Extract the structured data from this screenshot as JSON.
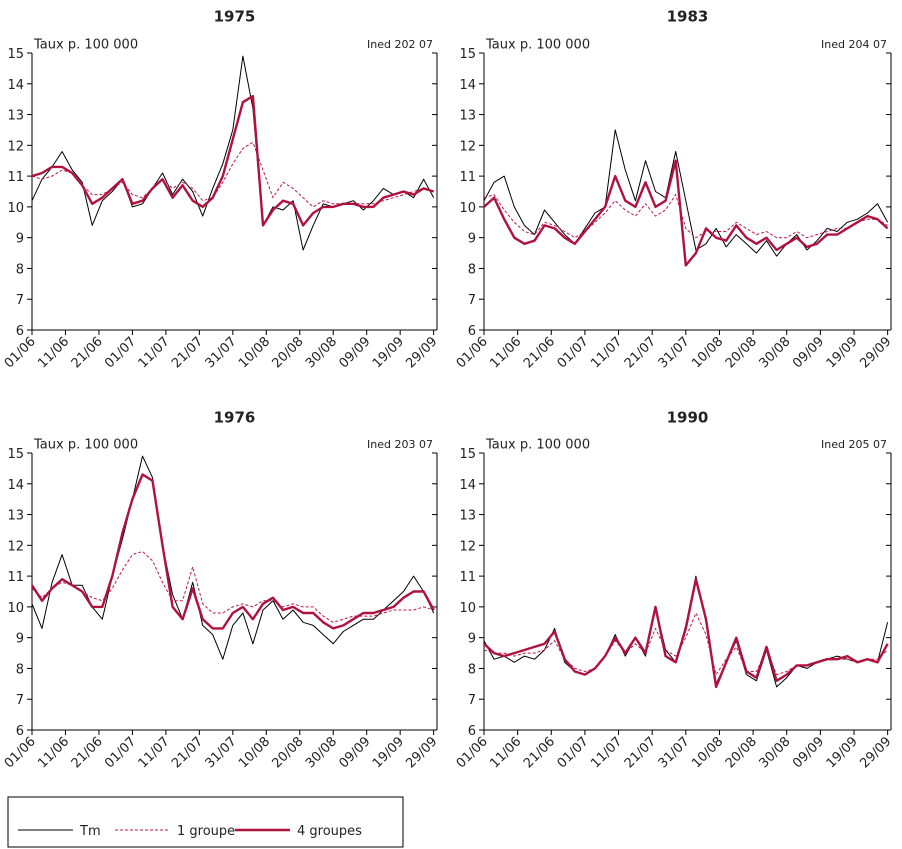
{
  "chart_data": [
    {
      "type": "line",
      "title": "1975",
      "y_label": "Taux p. 100 000",
      "annotation": "Ined 202 07",
      "x": [
        0,
        3,
        6,
        9,
        12,
        15,
        18,
        21,
        24,
        27,
        30,
        33,
        36,
        39,
        42,
        45,
        48,
        51,
        54,
        57,
        60,
        63,
        66,
        69,
        72,
        75,
        78,
        81,
        84,
        87,
        90,
        93,
        96,
        99,
        102,
        105,
        108,
        111,
        114,
        117,
        120
      ],
      "xlim": [
        0,
        121
      ],
      "ylim": [
        6,
        15
      ],
      "yticks": [
        6,
        7,
        8,
        9,
        10,
        11,
        12,
        13,
        14,
        15
      ],
      "xticks": [
        {
          "value": 0,
          "label": "01/06"
        },
        {
          "value": 10,
          "label": "11/06"
        },
        {
          "value": 20,
          "label": "21/06"
        },
        {
          "value": 30,
          "label": "01/07"
        },
        {
          "value": 40,
          "label": "11/07"
        },
        {
          "value": 50,
          "label": "21/07"
        },
        {
          "value": 60,
          "label": "31/07"
        },
        {
          "value": 70,
          "label": "10/08"
        },
        {
          "value": 80,
          "label": "20/08"
        },
        {
          "value": 90,
          "label": "30/08"
        },
        {
          "value": 100,
          "label": "09/09"
        },
        {
          "value": 110,
          "label": "19/09"
        },
        {
          "value": 120,
          "label": "29/09"
        }
      ],
      "series": [
        {
          "name": "Tm",
          "color": "#000000",
          "style": "thin",
          "values": [
            10.2,
            10.9,
            11.3,
            11.8,
            11.2,
            10.8,
            9.4,
            10.2,
            10.5,
            10.9,
            10.0,
            10.1,
            10.6,
            11.1,
            10.4,
            10.9,
            10.5,
            9.7,
            10.6,
            11.4,
            12.5,
            14.9,
            13.2,
            9.4,
            10.0,
            9.9,
            10.2,
            8.6,
            9.4,
            10.1,
            10.0,
            10.1,
            10.2,
            9.9,
            10.2,
            10.6,
            10.4,
            10.5,
            10.3,
            10.9,
            10.3
          ]
        },
        {
          "name": "1 groupe",
          "color": "#c0174a",
          "style": "dashed",
          "values": [
            11.0,
            10.9,
            11.0,
            11.2,
            11.1,
            10.7,
            10.4,
            10.4,
            10.6,
            10.8,
            10.4,
            10.3,
            10.6,
            10.9,
            10.6,
            10.8,
            10.6,
            10.2,
            10.3,
            10.8,
            11.4,
            11.9,
            12.1,
            11.2,
            10.3,
            10.8,
            10.6,
            10.3,
            10.0,
            10.2,
            10.1,
            10.1,
            10.1,
            10.1,
            10.1,
            10.2,
            10.3,
            10.4,
            10.5,
            10.6,
            10.5
          ]
        },
        {
          "name": "4 groupes",
          "color": "#b0123f",
          "style": "thick",
          "values": [
            11.0,
            11.1,
            11.3,
            11.3,
            11.1,
            10.7,
            10.1,
            10.3,
            10.6,
            10.9,
            10.1,
            10.2,
            10.6,
            10.9,
            10.3,
            10.7,
            10.2,
            10.0,
            10.3,
            11.0,
            12.2,
            13.4,
            13.6,
            9.4,
            9.9,
            10.2,
            10.1,
            9.4,
            9.8,
            10.0,
            10.0,
            10.1,
            10.1,
            10.0,
            10.0,
            10.3,
            10.4,
            10.5,
            10.4,
            10.6,
            10.5
          ]
        }
      ]
    },
    {
      "type": "line",
      "title": "1983",
      "y_label": "Taux p. 100 000",
      "annotation": "Ined 204 07",
      "x": [
        0,
        3,
        6,
        9,
        12,
        15,
        18,
        21,
        24,
        27,
        30,
        33,
        36,
        39,
        42,
        45,
        48,
        51,
        54,
        57,
        60,
        63,
        66,
        69,
        72,
        75,
        78,
        81,
        84,
        87,
        90,
        93,
        96,
        99,
        102,
        105,
        108,
        111,
        114,
        117,
        120
      ],
      "xlim": [
        0,
        121
      ],
      "ylim": [
        6,
        15
      ],
      "yticks": [
        6,
        7,
        8,
        9,
        10,
        11,
        12,
        13,
        14,
        15
      ],
      "xticks": [
        {
          "value": 0,
          "label": "01/06"
        },
        {
          "value": 10,
          "label": "11/06"
        },
        {
          "value": 20,
          "label": "21/06"
        },
        {
          "value": 30,
          "label": "01/07"
        },
        {
          "value": 40,
          "label": "11/07"
        },
        {
          "value": 50,
          "label": "21/07"
        },
        {
          "value": 60,
          "label": "31/07"
        },
        {
          "value": 70,
          "label": "10/08"
        },
        {
          "value": 80,
          "label": "20/08"
        },
        {
          "value": 90,
          "label": "30/08"
        },
        {
          "value": 100,
          "label": "09/09"
        },
        {
          "value": 110,
          "label": "19/09"
        },
        {
          "value": 120,
          "label": "29/09"
        }
      ],
      "series": [
        {
          "name": "Tm",
          "color": "#000000",
          "style": "thin",
          "values": [
            10.2,
            10.8,
            11.0,
            10.0,
            9.4,
            9.1,
            9.9,
            9.5,
            9.1,
            8.8,
            9.3,
            9.8,
            10.0,
            12.5,
            11.2,
            10.2,
            11.5,
            10.5,
            10.3,
            11.8,
            10.2,
            8.6,
            8.8,
            9.3,
            8.7,
            9.1,
            8.8,
            8.5,
            8.9,
            8.4,
            8.8,
            9.1,
            8.6,
            8.9,
            9.3,
            9.2,
            9.5,
            9.6,
            9.8,
            10.1,
            9.5
          ]
        },
        {
          "name": "1 groupe",
          "color": "#c0174a",
          "style": "dashed",
          "values": [
            10.3,
            10.4,
            9.9,
            9.5,
            9.2,
            9.1,
            9.5,
            9.4,
            9.2,
            9.0,
            9.2,
            9.5,
            9.8,
            10.2,
            9.9,
            9.7,
            10.1,
            9.7,
            9.9,
            10.4,
            9.3,
            9.0,
            9.2,
            9.2,
            9.2,
            9.5,
            9.3,
            9.1,
            9.2,
            9.0,
            9.0,
            9.2,
            9.0,
            9.1,
            9.2,
            9.3,
            9.3,
            9.5,
            9.6,
            9.6,
            9.4
          ]
        },
        {
          "name": "4 groupes",
          "color": "#b0123f",
          "style": "thick",
          "values": [
            10.0,
            10.3,
            9.6,
            9.0,
            8.8,
            8.9,
            9.4,
            9.3,
            9.0,
            8.8,
            9.2,
            9.6,
            10.0,
            11.0,
            10.2,
            10.0,
            10.8,
            10.0,
            10.2,
            11.5,
            8.1,
            8.5,
            9.3,
            9.0,
            8.9,
            9.4,
            9.0,
            8.8,
            9.0,
            8.6,
            8.8,
            9.0,
            8.7,
            8.8,
            9.1,
            9.1,
            9.3,
            9.5,
            9.7,
            9.6,
            9.3
          ]
        }
      ]
    },
    {
      "type": "line",
      "title": "1976",
      "y_label": "Taux p. 100 000",
      "annotation": "Ined 203 07",
      "x": [
        0,
        3,
        6,
        9,
        12,
        15,
        18,
        21,
        24,
        27,
        30,
        33,
        36,
        39,
        42,
        45,
        48,
        51,
        54,
        57,
        60,
        63,
        66,
        69,
        72,
        75,
        78,
        81,
        84,
        87,
        90,
        93,
        96,
        99,
        102,
        105,
        108,
        111,
        114,
        117,
        120
      ],
      "xlim": [
        0,
        121
      ],
      "ylim": [
        6,
        15
      ],
      "yticks": [
        6,
        7,
        8,
        9,
        10,
        11,
        12,
        13,
        14,
        15
      ],
      "xticks": [
        {
          "value": 0,
          "label": "01/06"
        },
        {
          "value": 10,
          "label": "11/06"
        },
        {
          "value": 20,
          "label": "21/06"
        },
        {
          "value": 30,
          "label": "01/07"
        },
        {
          "value": 40,
          "label": "11/07"
        },
        {
          "value": 50,
          "label": "21/07"
        },
        {
          "value": 60,
          "label": "31/07"
        },
        {
          "value": 70,
          "label": "10/08"
        },
        {
          "value": 80,
          "label": "20/08"
        },
        {
          "value": 90,
          "label": "30/08"
        },
        {
          "value": 100,
          "label": "09/09"
        },
        {
          "value": 110,
          "label": "19/09"
        },
        {
          "value": 120,
          "label": "29/09"
        }
      ],
      "series": [
        {
          "name": "Tm",
          "color": "#000000",
          "style": "thin",
          "values": [
            10.1,
            9.3,
            10.8,
            11.7,
            10.7,
            10.7,
            10.0,
            9.6,
            11.0,
            12.2,
            13.5,
            14.9,
            14.2,
            12.0,
            10.4,
            9.6,
            10.8,
            9.4,
            9.1,
            8.3,
            9.4,
            9.8,
            8.8,
            9.9,
            10.2,
            9.6,
            9.9,
            9.5,
            9.4,
            9.1,
            8.8,
            9.2,
            9.4,
            9.6,
            9.6,
            9.9,
            10.2,
            10.5,
            11.0,
            10.5,
            9.8
          ]
        },
        {
          "name": "1 groupe",
          "color": "#c0174a",
          "style": "dashed",
          "values": [
            10.6,
            10.3,
            10.6,
            10.8,
            10.7,
            10.5,
            10.3,
            10.2,
            10.6,
            11.2,
            11.7,
            11.8,
            11.5,
            10.8,
            10.2,
            10.2,
            11.3,
            10.1,
            9.8,
            9.8,
            10.0,
            10.1,
            10.0,
            10.2,
            10.2,
            10.0,
            10.1,
            10.0,
            10.0,
            9.7,
            9.5,
            9.6,
            9.7,
            9.7,
            9.7,
            9.8,
            9.9,
            9.9,
            9.9,
            10.0,
            9.9
          ]
        },
        {
          "name": "4 groupes",
          "color": "#b0123f",
          "style": "thick",
          "values": [
            10.7,
            10.2,
            10.6,
            10.9,
            10.7,
            10.5,
            10.0,
            10.0,
            11.0,
            12.4,
            13.5,
            14.3,
            14.1,
            12.0,
            10.0,
            9.6,
            10.6,
            9.6,
            9.3,
            9.3,
            9.8,
            10.0,
            9.6,
            10.1,
            10.3,
            9.9,
            10.0,
            9.8,
            9.8,
            9.5,
            9.3,
            9.4,
            9.6,
            9.8,
            9.8,
            9.9,
            10.0,
            10.3,
            10.5,
            10.5,
            9.9
          ]
        }
      ]
    },
    {
      "type": "line",
      "title": "1990",
      "y_label": "Taux p. 100 000",
      "annotation": "Ined 205 07",
      "x": [
        0,
        3,
        6,
        9,
        12,
        15,
        18,
        21,
        24,
        27,
        30,
        33,
        36,
        39,
        42,
        45,
        48,
        51,
        54,
        57,
        60,
        63,
        66,
        69,
        72,
        75,
        78,
        81,
        84,
        87,
        90,
        93,
        96,
        99,
        102,
        105,
        108,
        111,
        114,
        117,
        120
      ],
      "xlim": [
        0,
        121
      ],
      "ylim": [
        6,
        15
      ],
      "yticks": [
        6,
        7,
        8,
        9,
        10,
        11,
        12,
        13,
        14,
        15
      ],
      "xticks": [
        {
          "value": 0,
          "label": "01/06"
        },
        {
          "value": 10,
          "label": "11/06"
        },
        {
          "value": 20,
          "label": "21/06"
        },
        {
          "value": 30,
          "label": "01/07"
        },
        {
          "value": 40,
          "label": "11/07"
        },
        {
          "value": 50,
          "label": "21/07"
        },
        {
          "value": 60,
          "label": "31/07"
        },
        {
          "value": 70,
          "label": "10/08"
        },
        {
          "value": 80,
          "label": "20/08"
        },
        {
          "value": 90,
          "label": "30/08"
        },
        {
          "value": 100,
          "label": "09/09"
        },
        {
          "value": 110,
          "label": "19/09"
        },
        {
          "value": 120,
          "label": "29/09"
        }
      ],
      "series": [
        {
          "name": "Tm",
          "color": "#000000",
          "style": "thin",
          "values": [
            8.9,
            8.3,
            8.4,
            8.2,
            8.4,
            8.3,
            8.6,
            9.3,
            8.2,
            7.9,
            7.8,
            8.0,
            8.4,
            9.1,
            8.4,
            9.0,
            8.4,
            10.0,
            8.6,
            8.2,
            9.4,
            11.0,
            9.5,
            7.5,
            8.2,
            8.9,
            7.8,
            7.6,
            8.6,
            7.4,
            7.7,
            8.1,
            8.0,
            8.2,
            8.3,
            8.4,
            8.3,
            8.2,
            8.3,
            8.2,
            9.5
          ]
        },
        {
          "name": "1 groupe",
          "color": "#c0174a",
          "style": "dashed",
          "values": [
            8.6,
            8.5,
            8.5,
            8.4,
            8.5,
            8.5,
            8.6,
            8.9,
            8.3,
            8.0,
            7.9,
            8.0,
            8.4,
            8.9,
            8.5,
            8.8,
            8.5,
            9.3,
            8.6,
            8.4,
            9.0,
            9.8,
            9.1,
            7.8,
            8.3,
            8.7,
            7.9,
            7.9,
            8.6,
            7.8,
            7.9,
            8.1,
            8.1,
            8.2,
            8.3,
            8.3,
            8.3,
            8.2,
            8.3,
            8.3,
            8.6
          ]
        },
        {
          "name": "4 groupes",
          "color": "#b0123f",
          "style": "thick",
          "values": [
            8.8,
            8.5,
            8.4,
            8.5,
            8.6,
            8.7,
            8.8,
            9.2,
            8.3,
            7.9,
            7.8,
            8.0,
            8.4,
            9.0,
            8.5,
            9.0,
            8.5,
            10.0,
            8.4,
            8.2,
            9.3,
            10.9,
            9.6,
            7.4,
            8.2,
            9.0,
            7.9,
            7.7,
            8.7,
            7.6,
            7.8,
            8.1,
            8.1,
            8.2,
            8.3,
            8.3,
            8.4,
            8.2,
            8.3,
            8.2,
            8.8
          ]
        }
      ]
    }
  ]
}
